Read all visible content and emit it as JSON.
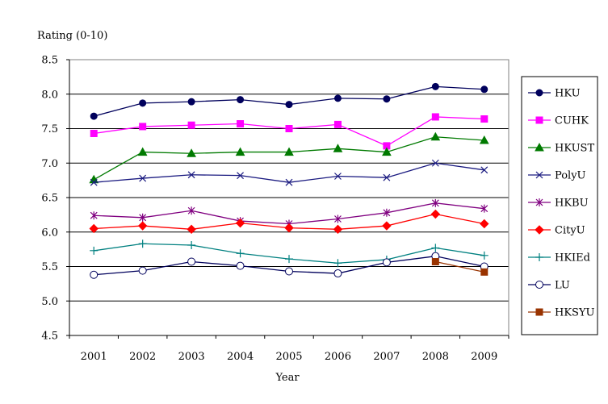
{
  "chart_data": {
    "type": "line",
    "title": "",
    "ylabel": "Rating (0-10)",
    "xlabel": "Year",
    "ylim": [
      4.5,
      8.5
    ],
    "yticks": [
      "8.5",
      "8.0",
      "7.5",
      "7.0",
      "6.5",
      "6.0",
      "5.5",
      "5.0",
      "4.5"
    ],
    "x": [
      "2001",
      "2002",
      "2003",
      "2004",
      "2005",
      "2006",
      "2007",
      "2008",
      "2009"
    ],
    "grid": "horizontal",
    "legend_position": "right",
    "series": [
      {
        "name": "HKU",
        "color": "#00005c",
        "marker": "filled-circle",
        "values": [
          7.68,
          7.87,
          7.89,
          7.92,
          7.85,
          7.94,
          7.93,
          8.11,
          8.07
        ]
      },
      {
        "name": "CUHK",
        "color": "#ff00ff",
        "marker": "filled-square",
        "values": [
          7.43,
          7.53,
          7.55,
          7.57,
          7.5,
          7.56,
          7.25,
          7.67,
          7.64
        ]
      },
      {
        "name": "HKUST",
        "color": "#007a00",
        "marker": "filled-triangle",
        "values": [
          6.76,
          7.16,
          7.14,
          7.16,
          7.16,
          7.21,
          7.16,
          7.38,
          7.33
        ]
      },
      {
        "name": "PolyU",
        "color": "#1a1a80",
        "marker": "x",
        "values": [
          6.72,
          6.78,
          6.83,
          6.82,
          6.72,
          6.81,
          6.79,
          7.0,
          6.9
        ]
      },
      {
        "name": "HKBU",
        "color": "#800080",
        "marker": "asterisk",
        "values": [
          6.24,
          6.21,
          6.31,
          6.16,
          6.12,
          6.19,
          6.28,
          6.42,
          6.34
        ]
      },
      {
        "name": "CityU",
        "color": "#ff0000",
        "marker": "filled-diamond",
        "values": [
          6.05,
          6.09,
          6.04,
          6.13,
          6.06,
          6.04,
          6.09,
          6.26,
          6.12
        ]
      },
      {
        "name": "HKIEd",
        "color": "#008080",
        "marker": "plus",
        "values": [
          5.73,
          5.83,
          5.81,
          5.69,
          5.61,
          5.55,
          5.6,
          5.77,
          5.66
        ]
      },
      {
        "name": "LU",
        "color": "#00005c",
        "marker": "open-circle",
        "values": [
          5.38,
          5.44,
          5.57,
          5.51,
          5.43,
          5.4,
          5.56,
          5.65,
          5.5
        ]
      },
      {
        "name": "HKSYU",
        "color": "#993300",
        "marker": "filled-square",
        "values": [
          null,
          null,
          null,
          null,
          null,
          null,
          null,
          5.57,
          5.42
        ]
      }
    ]
  }
}
